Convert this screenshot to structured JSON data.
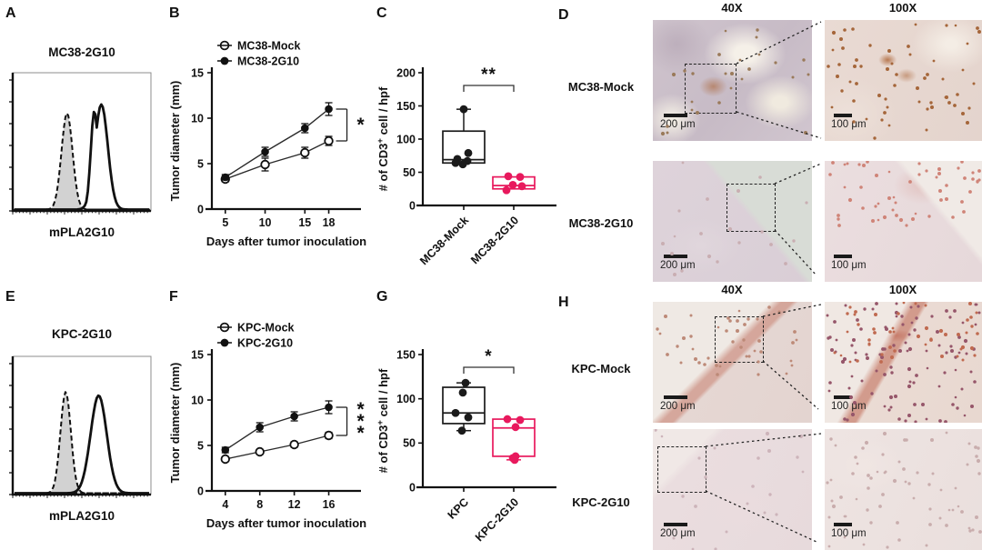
{
  "figure": {
    "panel_letters": [
      "A",
      "B",
      "C",
      "D",
      "E",
      "F",
      "G",
      "H"
    ],
    "accent_pink": "#E8195D",
    "ink": "#1a1a1a",
    "control_fill_gray": "#d2d2d2"
  },
  "histology": {
    "magnifications": [
      "40X",
      "100X"
    ],
    "scale_bar_40x": "200 μm",
    "scale_bar_100x": "100 μm",
    "top_rows": [
      {
        "label": "MC38-Mock"
      },
      {
        "label": "MC38-2G10"
      }
    ],
    "bottom_rows": [
      {
        "label": "KPC-Mock"
      },
      {
        "label": "KPC-2G10"
      }
    ]
  },
  "chart_data": [
    {
      "id": "A",
      "type": "area",
      "variant": "flow_cytometry_histogram",
      "title": "MC38-2G10",
      "xlabel": "mPLA2G10",
      "series": [
        {
          "role": "isotype_control",
          "style": "dashed_filled",
          "fill_color": "#d2d2d2",
          "peak_center": 0.39,
          "peak_width": 0.058,
          "peak_height": 0.78
        },
        {
          "role": "stained_sample",
          "style": "solid_open",
          "peak_center": 0.645,
          "peak_width": 0.068,
          "peak_height": 0.85,
          "shoulder": true
        }
      ]
    },
    {
      "id": "B",
      "type": "line",
      "xlabel": "Days after tumor inoculation",
      "ylabel": "Tumor diameter (mm)",
      "ylim": [
        0,
        15
      ],
      "yticks": [
        0,
        5,
        10,
        15
      ],
      "x": [
        5,
        10,
        15,
        18
      ],
      "series": [
        {
          "name": "MC38-Mock",
          "marker": "open",
          "values": [
            3.3,
            4.9,
            6.2,
            7.5
          ],
          "errors": [
            0.3,
            0.7,
            0.6,
            0.5
          ]
        },
        {
          "name": "MC38-2G10",
          "marker": "filled",
          "values": [
            3.5,
            6.3,
            8.9,
            11.0
          ],
          "errors": [
            0.3,
            0.5,
            0.5,
            0.7
          ]
        }
      ],
      "significance": "*",
      "legend_position": "top-left"
    },
    {
      "id": "C",
      "type": "box",
      "ylabel": "# of CD3+ cell / hpf",
      "ylabel_parts": {
        "base": "# of CD3",
        "sup": "+",
        "rest": " cell / hpf"
      },
      "ylim": [
        0,
        200
      ],
      "yticks": [
        0,
        50,
        100,
        150,
        200
      ],
      "groups": [
        {
          "label": "MC38-Mock",
          "color": "#1a1a1a",
          "box": {
            "q1": 64,
            "median": 69,
            "q3": 112,
            "whisker_high": 145
          },
          "points": [
            145,
            79,
            70,
            67,
            64,
            62
          ]
        },
        {
          "label": "MC38-2G10",
          "color": "#E8195D",
          "box": {
            "q1": 25,
            "median": 30,
            "q3": 43
          },
          "points": [
            44,
            43,
            31,
            29,
            23
          ]
        }
      ],
      "significance": "**"
    },
    {
      "id": "E",
      "type": "area",
      "variant": "flow_cytometry_histogram",
      "title": "KPC-2G10",
      "xlabel": "mPLA2G10",
      "series": [
        {
          "role": "isotype_control",
          "style": "dashed_filled",
          "fill_color": "#d2d2d2",
          "peak_center": 0.38,
          "peak_width": 0.055,
          "peak_height": 0.82
        },
        {
          "role": "stained_sample",
          "style": "solid_open",
          "peak_center": 0.625,
          "peak_width": 0.085,
          "peak_height": 0.79
        }
      ]
    },
    {
      "id": "F",
      "type": "line",
      "xlabel": "Days after tumor inoculation",
      "ylabel": "Tumor diameter (mm)",
      "ylim": [
        0,
        15
      ],
      "yticks": [
        0,
        5,
        10,
        15
      ],
      "x": [
        4,
        8,
        12,
        16
      ],
      "series": [
        {
          "name": "KPC-Mock",
          "marker": "open",
          "values": [
            3.5,
            4.3,
            5.1,
            6.1
          ],
          "errors": [
            0.25,
            0.25,
            0.3,
            0.35
          ]
        },
        {
          "name": "KPC-2G10",
          "marker": "filled",
          "values": [
            4.5,
            7.0,
            8.2,
            9.2
          ],
          "errors": [
            0.3,
            0.5,
            0.5,
            0.7
          ]
        }
      ],
      "significance": "***",
      "legend_position": "top-left"
    },
    {
      "id": "G",
      "type": "box",
      "ylabel": "# of CD3+ cell / hpf",
      "ylabel_parts": {
        "base": "# of CD3",
        "sup": "+",
        "rest": " cell / hpf"
      },
      "ylim": [
        0,
        150
      ],
      "yticks": [
        0,
        50,
        100,
        150
      ],
      "groups": [
        {
          "label": "KPC",
          "color": "#1a1a1a",
          "box": {
            "q1": 72,
            "median": 84,
            "q3": 113,
            "whisker_high": 118,
            "whisker_low": 64
          },
          "points": [
            118,
            107,
            84,
            79,
            64
          ]
        },
        {
          "label": "KPC-2G10",
          "color": "#E8195D",
          "box": {
            "q1": 35,
            "median": 67,
            "q3": 77,
            "whisker_low": 31
          },
          "points": [
            77,
            76,
            68,
            35,
            33,
            31
          ]
        }
      ],
      "significance": "*"
    }
  ]
}
